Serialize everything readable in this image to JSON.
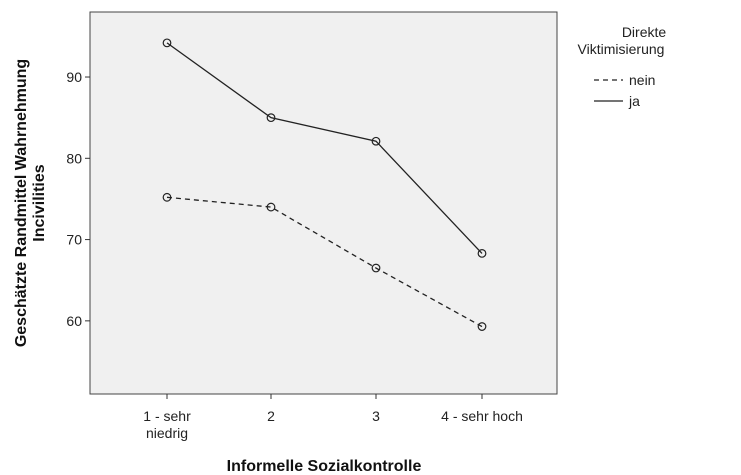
{
  "chart_data": {
    "type": "line",
    "categories": [
      "1 - sehr niedrig",
      "2",
      "3",
      "4 - sehr hoch"
    ],
    "category_label_lines": [
      [
        "1 - sehr",
        "niedrig"
      ],
      [
        "2"
      ],
      [
        "3"
      ],
      [
        "4 - sehr hoch"
      ]
    ],
    "series": [
      {
        "name": "nein",
        "values": [
          75.2,
          74.0,
          66.5,
          59.3
        ],
        "line_style": "dashed",
        "marker": "open-circle"
      },
      {
        "name": "ja",
        "values": [
          94.2,
          85.0,
          82.1,
          68.3
        ],
        "line_style": "solid",
        "marker": "open-circle"
      }
    ],
    "xlabel": "Informelle Sozialkontrolle",
    "ylabel_lines": [
      "Geschätzte Randmittel Wahrnehmung",
      "Incivilities"
    ],
    "ylim": [
      51,
      98
    ],
    "yticks": [
      60,
      70,
      80,
      90
    ],
    "legend": {
      "title_lines": [
        "Direkte",
        "Viktimisierung"
      ],
      "placement": "right"
    },
    "grid": false,
    "colors": {
      "plot_background": "#f0f0f0",
      "line": "#222222",
      "frame": "#444444"
    }
  }
}
